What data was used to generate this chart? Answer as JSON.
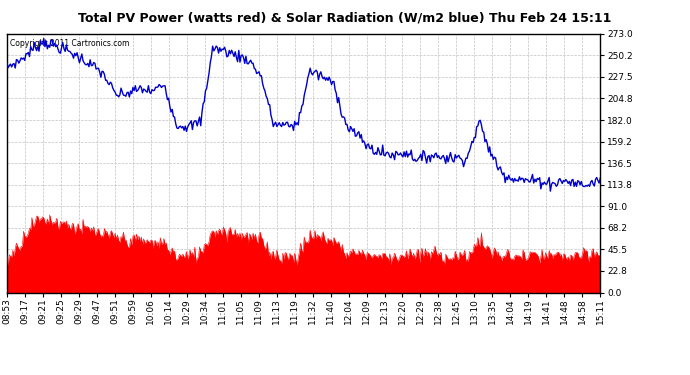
{
  "title": "Total PV Power (watts red) & Solar Radiation (W/m2 blue) Thu Feb 24 15:11",
  "copyright_text": "Copyright 2011 Cartronics.com",
  "yticks": [
    0.0,
    22.8,
    45.5,
    68.2,
    91.0,
    113.8,
    136.5,
    159.2,
    182.0,
    204.8,
    227.5,
    250.2,
    273.0
  ],
  "ymin": 0.0,
  "ymax": 273.0,
  "x_labels": [
    "08:53",
    "09:17",
    "09:21",
    "09:25",
    "09:29",
    "09:47",
    "09:51",
    "09:59",
    "10:06",
    "10:14",
    "10:29",
    "10:34",
    "11:01",
    "11:05",
    "11:09",
    "11:13",
    "11:19",
    "11:32",
    "11:40",
    "12:04",
    "12:09",
    "12:13",
    "12:20",
    "12:29",
    "12:38",
    "12:45",
    "13:10",
    "13:35",
    "14:04",
    "14:19",
    "14:41",
    "14:48",
    "14:58",
    "15:11"
  ],
  "background_color": "#ffffff",
  "plot_bg_color": "#ffffff",
  "grid_color": "#bbbbbb",
  "blue_line_color": "#0000cc",
  "red_fill_color": "#ff0000",
  "title_fontsize": 9,
  "tick_fontsize": 6.5,
  "blue_data": [
    238,
    244,
    255,
    265,
    260,
    255,
    248,
    240,
    230,
    208,
    210,
    215,
    212,
    220,
    177,
    175,
    180,
    258,
    255,
    250,
    245,
    228,
    178,
    176,
    177,
    234,
    228,
    220,
    177,
    165,
    152,
    147,
    145,
    148,
    140,
    145,
    143,
    142,
    142,
    180,
    145,
    125,
    120,
    118,
    118,
    115,
    118,
    115,
    113,
    120
  ],
  "red_data": [
    35,
    50,
    72,
    78,
    75,
    72,
    68,
    65,
    60,
    58,
    55,
    55,
    52,
    52,
    38,
    38,
    42,
    65,
    65,
    63,
    58,
    55,
    40,
    38,
    38,
    60,
    58,
    55,
    42,
    42,
    40,
    38,
    38,
    40,
    38,
    42,
    38,
    38,
    38,
    55,
    42,
    38,
    38,
    38,
    38,
    38,
    38,
    38,
    38,
    42
  ],
  "n_points": 500,
  "blue_noise_scale": 3,
  "red_noise_scale": 4
}
